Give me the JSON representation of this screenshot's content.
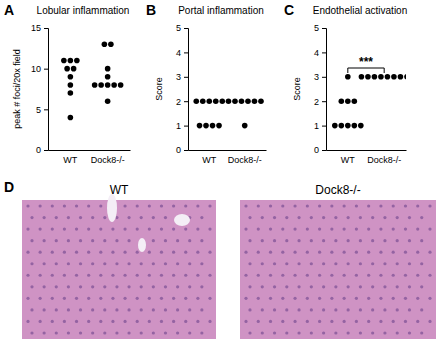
{
  "chart_data": [
    {
      "type": "dot",
      "title": "Lobular inflammation",
      "y_label": "peak # foci/20x field",
      "categories": [
        "WT",
        "Dock8-/-"
      ],
      "values": [
        [
          11,
          11,
          11,
          10,
          10,
          9,
          8,
          7,
          4
        ],
        [
          13,
          13,
          10,
          9,
          8,
          8,
          8,
          8,
          8,
          6
        ]
      ],
      "color": "#000000",
      "marker": "circle",
      "ylim": [
        0,
        15
      ],
      "yticks": [
        0,
        5,
        10,
        15
      ],
      "annotations": [
        {
          "text": "A"
        }
      ]
    },
    {
      "type": "dot",
      "title": "Portal inflammation",
      "y_label": "Score",
      "categories": [
        "WT",
        "Dock8-/-"
      ],
      "values": [
        [
          2,
          2,
          2,
          2,
          2,
          1,
          1,
          1,
          1
        ],
        [
          2,
          2,
          2,
          2,
          2,
          2,
          1
        ]
      ],
      "color": "#000000",
      "marker": "circle",
      "ylim": [
        0,
        5
      ],
      "yticks": [
        0,
        1,
        2,
        3,
        4,
        5
      ],
      "annotations": [
        {
          "text": "B"
        }
      ]
    },
    {
      "type": "dot",
      "title": "Endothelial activation",
      "y_label": "Score",
      "categories": [
        "WT",
        "Dock8-/-"
      ],
      "values": [
        [
          3,
          2,
          2,
          2,
          1,
          1,
          1,
          1,
          1
        ],
        [
          3,
          3,
          3,
          3,
          3,
          3,
          3,
          3
        ]
      ],
      "color": "#000000",
      "marker": "circle",
      "ylim": [
        0,
        5
      ],
      "yticks": [
        0,
        1,
        2,
        3,
        4,
        5
      ],
      "annotations": [
        {
          "text": "C"
        },
        {
          "text": "***"
        }
      ]
    }
  ],
  "panel_d": {
    "label": "D",
    "image_titles": [
      "WT",
      "Dock8-/-"
    ]
  }
}
